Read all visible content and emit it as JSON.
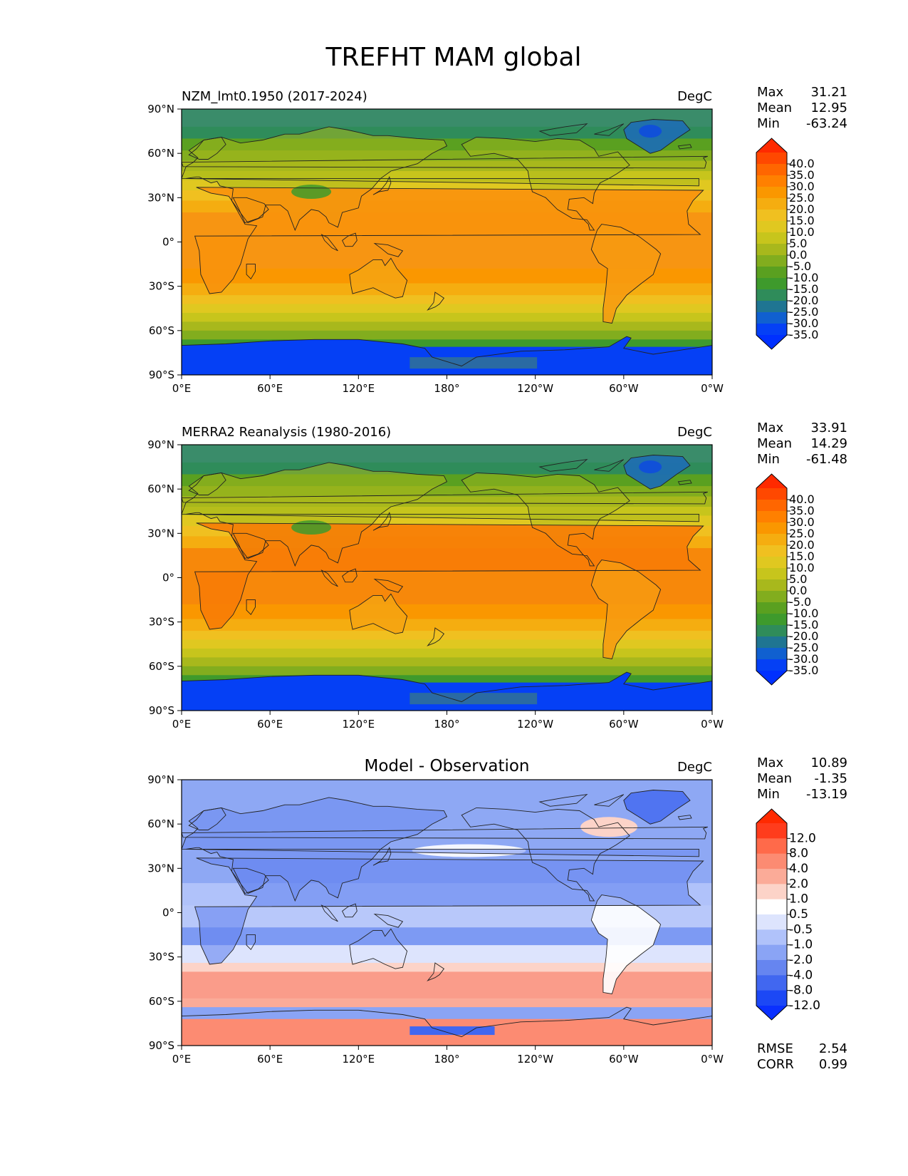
{
  "title": "TREFHT MAM global",
  "lat_ticks": [
    "90°N",
    "60°N",
    "30°N",
    "0°",
    "30°S",
    "60°S",
    "90°S"
  ],
  "lon_ticks": [
    "0°E",
    "60°E",
    "120°E",
    "180°",
    "120°W",
    "60°W",
    "0°W"
  ],
  "panels": [
    {
      "id": "model",
      "left_title": "NZM_lmt0.1950 (2017-2024)",
      "center_title": "",
      "units": "DegC",
      "stats": [
        {
          "label": "Max",
          "value": "31.21"
        },
        {
          "label": "Mean",
          "value": "12.95"
        },
        {
          "label": "Min",
          "value": "-63.24"
        }
      ],
      "colorbar": {
        "labels": [
          "40.0",
          "35.0",
          "30.0",
          "25.0",
          "20.0",
          "15.0",
          "10.0",
          "5.0",
          "0.0",
          "-5.0",
          "-10.0",
          "-15.0",
          "-20.0",
          "-25.0",
          "-30.0",
          "-35.0"
        ],
        "colors": [
          "#ff2a00",
          "#ff4800",
          "#ff6600",
          "#ff8000",
          "#fa9700",
          "#f5ad10",
          "#f0c020",
          "#e0c820",
          "#c7c51c",
          "#a8b81c",
          "#82ad1e",
          "#5aa020",
          "#3e9a2c",
          "#2f8c5a",
          "#1f7592",
          "#1060d0",
          "#0540f5",
          "#0030ff"
        ]
      }
    },
    {
      "id": "obs",
      "left_title": "MERRA2 Reanalysis (1980-2016)",
      "center_title": "",
      "units": "DegC",
      "stats": [
        {
          "label": "Max",
          "value": "33.91"
        },
        {
          "label": "Mean",
          "value": "14.29"
        },
        {
          "label": "Min",
          "value": "-61.48"
        }
      ],
      "colorbar": {
        "labels": [
          "40.0",
          "35.0",
          "30.0",
          "25.0",
          "20.0",
          "15.0",
          "10.0",
          "5.0",
          "0.0",
          "-5.0",
          "-10.0",
          "-15.0",
          "-20.0",
          "-25.0",
          "-30.0",
          "-35.0"
        ],
        "colors": [
          "#ff2a00",
          "#ff4800",
          "#ff6600",
          "#ff8000",
          "#fa9700",
          "#f5ad10",
          "#f0c020",
          "#e0c820",
          "#c7c51c",
          "#a8b81c",
          "#82ad1e",
          "#5aa020",
          "#3e9a2c",
          "#2f8c5a",
          "#1f7592",
          "#1060d0",
          "#0540f5",
          "#0030ff"
        ]
      }
    },
    {
      "id": "diff",
      "left_title": "",
      "center_title": "Model - Observation",
      "units": "DegC",
      "stats": [
        {
          "label": "Max",
          "value": "10.89"
        },
        {
          "label": "Mean",
          "value": "-1.35"
        },
        {
          "label": "Min",
          "value": "-13.19"
        }
      ],
      "extra_stats": [
        {
          "label": "RMSE",
          "value": "2.54"
        },
        {
          "label": "CORR",
          "value": "0.99"
        }
      ],
      "colorbar": {
        "labels": [
          "12.0",
          "8.0",
          "4.0",
          "2.0",
          "1.0",
          "0.5",
          "-0.5",
          "-1.0",
          "-2.0",
          "-4.0",
          "-8.0",
          "-12.0"
        ],
        "colors": [
          "#ff2a00",
          "#ff3c1c",
          "#ff6a4a",
          "#fc8b72",
          "#fbab98",
          "#fcd3c8",
          "#ffffff",
          "#dde4fd",
          "#b0c2fa",
          "#8aa4f5",
          "#6685f0",
          "#4167f0",
          "#1c48f5",
          "#0a30ff"
        ]
      }
    }
  ],
  "colors": {
    "ocean_model_tropics": "#f89610",
    "ocean_obs_tropics": "#f88a08",
    "antarctica": "#0540f5",
    "arctic": "#3e8f58",
    "greenland": "#1f6fb0",
    "diff_background": "#8ea8f4",
    "diff_south_band": "#fa9c8a",
    "coastline": "#222222"
  }
}
